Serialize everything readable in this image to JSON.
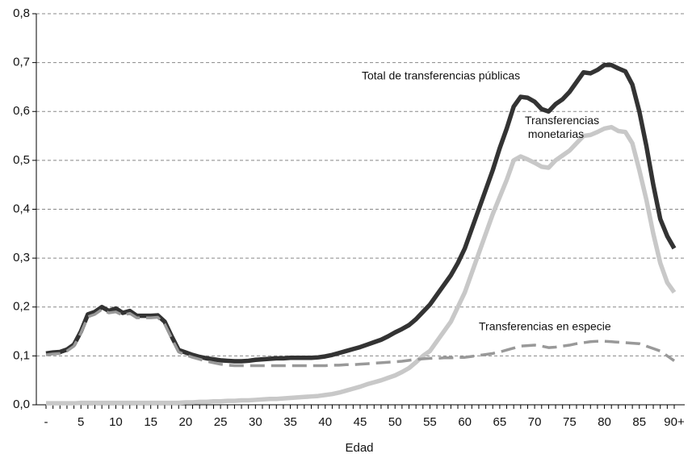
{
  "chart_data": {
    "type": "line",
    "x_label": "Edad",
    "categories": [
      "-",
      null,
      null,
      null,
      null,
      "5",
      null,
      null,
      null,
      null,
      "10",
      null,
      null,
      null,
      null,
      "15",
      null,
      null,
      null,
      null,
      "20",
      null,
      null,
      null,
      null,
      "25",
      null,
      null,
      null,
      null,
      "30",
      null,
      null,
      null,
      null,
      "35",
      null,
      null,
      null,
      null,
      "40",
      null,
      null,
      null,
      null,
      "45",
      null,
      null,
      null,
      null,
      "50",
      null,
      null,
      null,
      null,
      "55",
      null,
      null,
      null,
      null,
      "60",
      null,
      null,
      null,
      null,
      "65",
      null,
      null,
      null,
      null,
      "70",
      null,
      null,
      null,
      null,
      "75",
      null,
      null,
      null,
      null,
      "80",
      null,
      null,
      null,
      null,
      "85",
      null,
      null,
      null,
      null,
      "90+"
    ],
    "series": [
      {
        "name": "Total de transferencias públicas",
        "color": "#333333",
        "values": [
          0.105,
          0.107,
          0.108,
          0.113,
          0.123,
          0.15,
          0.185,
          0.19,
          0.2,
          0.192,
          0.197,
          0.188,
          0.192,
          0.182,
          0.182,
          0.182,
          0.183,
          0.17,
          0.14,
          0.112,
          0.107,
          0.102,
          0.098,
          0.095,
          0.093,
          0.091,
          0.09,
          0.089,
          0.089,
          0.09,
          0.092,
          0.093,
          0.094,
          0.095,
          0.095,
          0.096,
          0.096,
          0.096,
          0.096,
          0.097,
          0.099,
          0.102,
          0.106,
          0.11,
          0.114,
          0.118,
          0.123,
          0.128,
          0.133,
          0.14,
          0.148,
          0.155,
          0.163,
          0.175,
          0.19,
          0.205,
          0.225,
          0.245,
          0.265,
          0.29,
          0.32,
          0.36,
          0.4,
          0.44,
          0.48,
          0.525,
          0.565,
          0.61,
          0.63,
          0.628,
          0.62,
          0.605,
          0.6,
          0.615,
          0.625,
          0.64,
          0.66,
          0.68,
          0.678,
          0.685,
          0.695,
          0.695,
          0.688,
          0.682,
          0.655,
          0.6,
          0.53,
          0.45,
          0.38,
          0.345,
          0.32
        ]
      },
      {
        "name": "Transferencias monetarias",
        "color": "#c8c8c8",
        "values": [
          0.003,
          0.003,
          0.003,
          0.003,
          0.003,
          0.004,
          0.004,
          0.004,
          0.004,
          0.004,
          0.004,
          0.004,
          0.004,
          0.004,
          0.004,
          0.004,
          0.004,
          0.004,
          0.004,
          0.004,
          0.005,
          0.005,
          0.006,
          0.006,
          0.007,
          0.007,
          0.008,
          0.008,
          0.009,
          0.009,
          0.01,
          0.011,
          0.012,
          0.012,
          0.013,
          0.014,
          0.015,
          0.016,
          0.017,
          0.018,
          0.02,
          0.022,
          0.025,
          0.029,
          0.033,
          0.037,
          0.042,
          0.046,
          0.05,
          0.055,
          0.06,
          0.067,
          0.075,
          0.087,
          0.1,
          0.11,
          0.13,
          0.15,
          0.17,
          0.2,
          0.23,
          0.27,
          0.31,
          0.35,
          0.39,
          0.425,
          0.46,
          0.5,
          0.508,
          0.502,
          0.495,
          0.487,
          0.485,
          0.5,
          0.51,
          0.52,
          0.535,
          0.55,
          0.552,
          0.558,
          0.565,
          0.568,
          0.56,
          0.558,
          0.535,
          0.48,
          0.42,
          0.35,
          0.29,
          0.25,
          0.23
        ]
      },
      {
        "name": "Transferencias en especie",
        "color": "#999999",
        "dashed": true,
        "values": [
          0.102,
          0.104,
          0.105,
          0.11,
          0.12,
          0.147,
          0.18,
          0.185,
          0.195,
          0.188,
          0.19,
          0.183,
          0.187,
          0.178,
          0.178,
          0.178,
          0.179,
          0.165,
          0.136,
          0.108,
          0.102,
          0.097,
          0.093,
          0.089,
          0.086,
          0.083,
          0.081,
          0.08,
          0.08,
          0.08,
          0.08,
          0.08,
          0.08,
          0.08,
          0.08,
          0.08,
          0.08,
          0.08,
          0.08,
          0.08,
          0.08,
          0.081,
          0.081,
          0.082,
          0.082,
          0.083,
          0.084,
          0.085,
          0.086,
          0.087,
          0.088,
          0.089,
          0.091,
          0.093,
          0.094,
          0.095,
          0.095,
          0.096,
          0.096,
          0.097,
          0.097,
          0.099,
          0.101,
          0.103,
          0.105,
          0.108,
          0.112,
          0.116,
          0.12,
          0.121,
          0.122,
          0.12,
          0.117,
          0.118,
          0.12,
          0.122,
          0.125,
          0.127,
          0.129,
          0.13,
          0.13,
          0.129,
          0.128,
          0.127,
          0.126,
          0.125,
          0.12,
          0.115,
          0.11,
          0.1,
          0.09
        ]
      }
    ],
    "ylim": [
      0,
      0.8
    ],
    "yticks": [
      {
        "value": 0,
        "label": "0,0"
      },
      {
        "value": 0.1,
        "label": "0,1"
      },
      {
        "value": 0.2,
        "label": "0,2"
      },
      {
        "value": 0.3,
        "label": "0,3"
      },
      {
        "value": 0.4,
        "label": "0,4"
      },
      {
        "value": 0.5,
        "label": "0,5"
      },
      {
        "value": 0.6,
        "label": "0,6"
      },
      {
        "value": 0.7,
        "label": "0,7"
      },
      {
        "value": 0.8,
        "label": "0,8"
      }
    ],
    "grid": true
  }
}
